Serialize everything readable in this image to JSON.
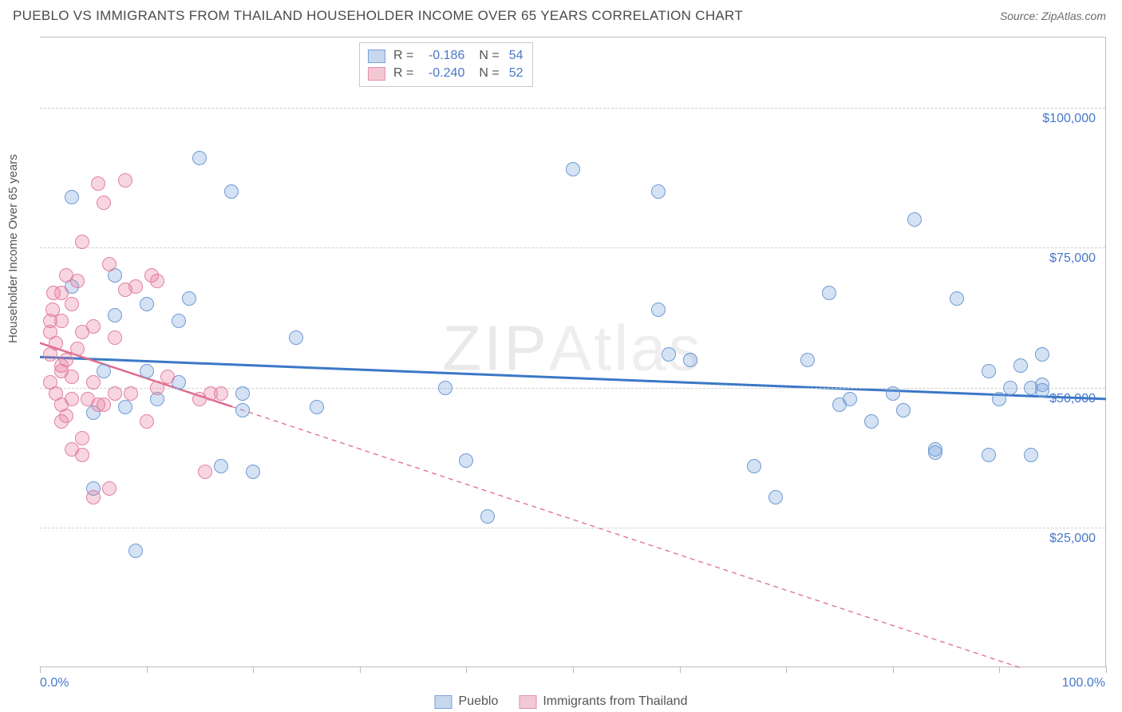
{
  "title": "PUEBLO VS IMMIGRANTS FROM THAILAND HOUSEHOLDER INCOME OVER 65 YEARS CORRELATION CHART",
  "source": "Source: ZipAtlas.com",
  "y_axis_label": "Householder Income Over 65 years",
  "watermark": "ZIPAtlas",
  "chart": {
    "type": "scatter",
    "xlim": [
      0,
      100
    ],
    "ylim": [
      0,
      112500
    ],
    "x_ticks": [
      0,
      10,
      20,
      30,
      40,
      50,
      60,
      70,
      80,
      90,
      100
    ],
    "x_tick_labels_shown": {
      "0": "0.0%",
      "100": "100.0%"
    },
    "y_gridlines": [
      25000,
      50000,
      75000,
      100000
    ],
    "y_gridline_labels": [
      "$25,000",
      "$50,000",
      "$75,000",
      "$100,000"
    ],
    "grid_color": "#d0d0d0",
    "background_color": "#ffffff",
    "axis_color": "#bdbdbd",
    "label_color": "#4878c9",
    "point_radius": 9,
    "point_border_width": 1.2,
    "point_fill_opacity": 0.32
  },
  "series": [
    {
      "name": "Pueblo",
      "color_fill": "rgba(121,164,220,0.32)",
      "color_border": "#6f9ad3",
      "swatch_fill": "#c6d7ee",
      "swatch_border": "#7aa3d8",
      "R": "-0.186",
      "N": "54",
      "trend": {
        "x1": 0,
        "y1": 55500,
        "x2": 100,
        "y2": 48000,
        "color": "#3b78c6",
        "width": 3,
        "dash": "none"
      },
      "points": [
        [
          3,
          68000
        ],
        [
          5,
          45500
        ],
        [
          6,
          53000
        ],
        [
          7,
          70000
        ],
        [
          7,
          63000
        ],
        [
          8,
          46500
        ],
        [
          9,
          21000
        ],
        [
          10,
          53000
        ],
        [
          10,
          65000
        ],
        [
          11,
          48000
        ],
        [
          13,
          51000
        ],
        [
          13,
          62000
        ],
        [
          14,
          66000
        ],
        [
          15,
          91000
        ],
        [
          17,
          36000
        ],
        [
          18,
          85000
        ],
        [
          19,
          49000
        ],
        [
          19,
          46000
        ],
        [
          20,
          35000
        ],
        [
          24,
          59000
        ],
        [
          26,
          46500
        ],
        [
          38,
          50000
        ],
        [
          40,
          37000
        ],
        [
          42,
          27000
        ],
        [
          50,
          89000
        ],
        [
          58,
          64000
        ],
        [
          58,
          85000
        ],
        [
          59,
          56000
        ],
        [
          61,
          55000
        ],
        [
          67,
          36000
        ],
        [
          69,
          30500
        ],
        [
          72,
          55000
        ],
        [
          74,
          67000
        ],
        [
          75,
          47000
        ],
        [
          76,
          48000
        ],
        [
          78,
          44000
        ],
        [
          80,
          49000
        ],
        [
          81,
          46000
        ],
        [
          82,
          80000
        ],
        [
          84,
          39000
        ],
        [
          84,
          38500
        ],
        [
          86,
          66000
        ],
        [
          89,
          38000
        ],
        [
          89,
          53000
        ],
        [
          90,
          48000
        ],
        [
          91,
          50000
        ],
        [
          92,
          54000
        ],
        [
          93,
          50000
        ],
        [
          93,
          38000
        ],
        [
          94,
          56000
        ],
        [
          94,
          50500
        ],
        [
          94,
          49500
        ],
        [
          3,
          84000
        ],
        [
          5,
          32000
        ]
      ]
    },
    {
      "name": "Immigrants from Thailand",
      "color_fill": "rgba(232,120,154,0.30)",
      "color_border": "#e2809f",
      "swatch_fill": "#f3c8d5",
      "swatch_border": "#e590ad",
      "R": "-0.240",
      "N": "52",
      "trend": {
        "x1": 0,
        "y1": 58000,
        "x2": 100,
        "y2": -5000,
        "solid_until_x": 18,
        "color": "#e06a8e",
        "width": 2.5,
        "dash": "6,5"
      },
      "points": [
        [
          1,
          62000
        ],
        [
          1,
          60000
        ],
        [
          1,
          56000
        ],
        [
          1,
          51000
        ],
        [
          1.2,
          64000
        ],
        [
          1.3,
          67000
        ],
        [
          1.5,
          58000
        ],
        [
          1.5,
          49000
        ],
        [
          2,
          67000
        ],
        [
          2,
          62000
        ],
        [
          2,
          54000
        ],
        [
          2,
          53000
        ],
        [
          2,
          47000
        ],
        [
          2,
          44000
        ],
        [
          2.5,
          70000
        ],
        [
          2.5,
          55000
        ],
        [
          2.5,
          45000
        ],
        [
          3,
          65000
        ],
        [
          3,
          52000
        ],
        [
          3,
          48000
        ],
        [
          3,
          39000
        ],
        [
          3.5,
          69000
        ],
        [
          3.5,
          57000
        ],
        [
          4,
          76000
        ],
        [
          4,
          60000
        ],
        [
          4,
          41000
        ],
        [
          4,
          38000
        ],
        [
          4.5,
          48000
        ],
        [
          5,
          61000
        ],
        [
          5,
          51000
        ],
        [
          5,
          30500
        ],
        [
          5.5,
          47000
        ],
        [
          5.5,
          86500
        ],
        [
          6,
          83000
        ],
        [
          6,
          47000
        ],
        [
          6.5,
          72000
        ],
        [
          6.5,
          32000
        ],
        [
          7,
          59000
        ],
        [
          7,
          49000
        ],
        [
          8,
          67500
        ],
        [
          8,
          87000
        ],
        [
          8.5,
          49000
        ],
        [
          9,
          68000
        ],
        [
          10,
          44000
        ],
        [
          10.5,
          70000
        ],
        [
          11,
          69000
        ],
        [
          11,
          50000
        ],
        [
          12,
          52000
        ],
        [
          15,
          48000
        ],
        [
          15.5,
          35000
        ],
        [
          16,
          49000
        ],
        [
          17,
          49000
        ]
      ]
    }
  ],
  "legend_bottom": [
    {
      "label": "Pueblo",
      "swatch_fill": "#c6d7ee",
      "swatch_border": "#7aa3d8"
    },
    {
      "label": "Immigrants from Thailand",
      "swatch_fill": "#f3c8d5",
      "swatch_border": "#e590ad"
    }
  ]
}
